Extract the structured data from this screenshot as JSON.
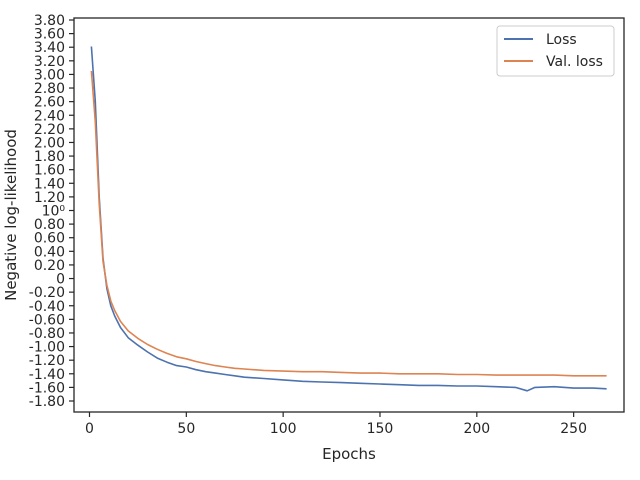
{
  "chart_data": {
    "type": "line",
    "xlabel": "Epochs",
    "ylabel": "Negative log-likelihood",
    "xlim": [
      -8,
      276
    ],
    "x_ticks": [
      0,
      50,
      100,
      150,
      200,
      250
    ],
    "y_ticks": [
      {
        "label": "3.80",
        "value": 3.8
      },
      {
        "label": "3.60",
        "value": 3.6
      },
      {
        "label": "3.40",
        "value": 3.4
      },
      {
        "label": "3.20",
        "value": 3.2
      },
      {
        "label": "3.00",
        "value": 3.0
      },
      {
        "label": "2.80",
        "value": 2.8
      },
      {
        "label": "2.60",
        "value": 2.6
      },
      {
        "label": "2.40",
        "value": 2.4
      },
      {
        "label": "2.20",
        "value": 2.2
      },
      {
        "label": "2.00",
        "value": 2.0
      },
      {
        "label": "1.80",
        "value": 1.8
      },
      {
        "label": "1.60",
        "value": 1.6
      },
      {
        "label": "1.40",
        "value": 1.4
      },
      {
        "label": "1.20",
        "value": 1.2
      },
      {
        "label": "10⁰",
        "value": 1.0
      },
      {
        "label": "0.80",
        "value": 0.8
      },
      {
        "label": "0.60",
        "value": 0.6
      },
      {
        "label": "0.40",
        "value": 0.4
      },
      {
        "label": "0.20",
        "value": 0.2
      },
      {
        "label": "0",
        "value": 0.0
      },
      {
        "label": "-0.20",
        "value": -0.2
      },
      {
        "label": "-0.40",
        "value": -0.4
      },
      {
        "label": "-0.60",
        "value": -0.6
      },
      {
        "label": "-0.80",
        "value": -0.8
      },
      {
        "label": "-1.00",
        "value": -1.0
      },
      {
        "label": "-1.20",
        "value": -1.2
      },
      {
        "label": "-1.40",
        "value": -1.4
      },
      {
        "label": "-1.60",
        "value": -1.6
      },
      {
        "label": "-1.80",
        "value": -1.8
      }
    ],
    "legend_position": "top-right",
    "grid": false,
    "series": [
      {
        "name": "Loss",
        "color": "#4c72b0",
        "x": [
          1,
          3,
          5,
          7,
          9,
          11,
          13,
          16,
          20,
          25,
          30,
          35,
          40,
          45,
          50,
          55,
          60,
          65,
          70,
          75,
          80,
          90,
          100,
          110,
          120,
          130,
          140,
          150,
          160,
          170,
          180,
          190,
          200,
          210,
          220,
          226,
          230,
          240,
          250,
          260,
          267
        ],
        "y": [
          3.41,
          2.6,
          1.2,
          0.3,
          -0.15,
          -0.4,
          -0.55,
          -0.72,
          -0.87,
          -0.98,
          -1.08,
          -1.17,
          -1.23,
          -1.28,
          -1.3,
          -1.34,
          -1.37,
          -1.39,
          -1.41,
          -1.43,
          -1.45,
          -1.47,
          -1.49,
          -1.51,
          -1.52,
          -1.53,
          -1.54,
          -1.55,
          -1.56,
          -1.57,
          -1.57,
          -1.58,
          -1.58,
          -1.59,
          -1.6,
          -1.65,
          -1.6,
          -1.59,
          -1.61,
          -1.61,
          -1.62
        ]
      },
      {
        "name": "Val. loss",
        "color": "#dd8452",
        "x": [
          1,
          3,
          5,
          7,
          9,
          11,
          13,
          16,
          20,
          25,
          30,
          35,
          40,
          45,
          50,
          55,
          60,
          65,
          70,
          75,
          80,
          90,
          100,
          110,
          120,
          130,
          140,
          150,
          160,
          170,
          180,
          190,
          200,
          210,
          220,
          230,
          240,
          250,
          260,
          267
        ],
        "y": [
          3.05,
          2.3,
          1.1,
          0.25,
          -0.1,
          -0.33,
          -0.47,
          -0.63,
          -0.77,
          -0.88,
          -0.97,
          -1.04,
          -1.1,
          -1.15,
          -1.18,
          -1.22,
          -1.25,
          -1.28,
          -1.3,
          -1.32,
          -1.33,
          -1.35,
          -1.36,
          -1.37,
          -1.37,
          -1.38,
          -1.39,
          -1.39,
          -1.4,
          -1.4,
          -1.4,
          -1.41,
          -1.41,
          -1.42,
          -1.42,
          -1.42,
          -1.42,
          -1.43,
          -1.43,
          -1.43
        ]
      }
    ]
  }
}
